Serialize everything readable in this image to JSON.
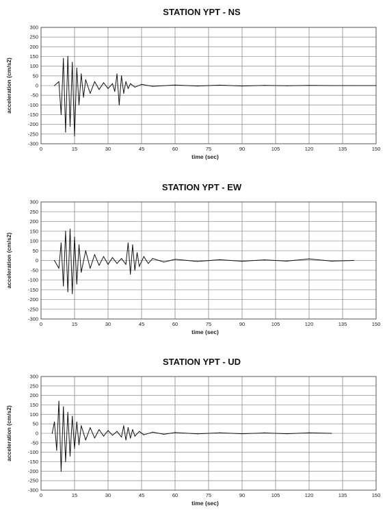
{
  "chart_data": [
    {
      "type": "line",
      "title": "STATION YPT - NS",
      "xlabel": "time (sec)",
      "ylabel": "acceleration (cm/s2)",
      "xlim": [
        0,
        150
      ],
      "ylim": [
        -300,
        300
      ],
      "xticks": [
        "0",
        "15",
        "30",
        "45",
        "60",
        "75",
        "90",
        "105",
        "120",
        "135",
        "150"
      ],
      "yticks": [
        "300",
        "250",
        "200",
        "150",
        "100",
        "50",
        "0",
        "-50",
        "-100",
        "-150",
        "-200",
        "-250",
        "-300"
      ],
      "grid": true,
      "series": [
        {
          "x": [
            6,
            8,
            9,
            10,
            11,
            12,
            13,
            14,
            15,
            16,
            17,
            18,
            19,
            20,
            22,
            24,
            26,
            28,
            30,
            32,
            33,
            34,
            35,
            36,
            37,
            38,
            39,
            40,
            42,
            45,
            50,
            60,
            70,
            80,
            90,
            100,
            110,
            120,
            130,
            140,
            150
          ],
          "y": [
            0,
            20,
            -150,
            140,
            -240,
            150,
            -210,
            120,
            -260,
            90,
            -100,
            60,
            -60,
            30,
            -40,
            20,
            -20,
            15,
            -15,
            10,
            -30,
            60,
            -100,
            50,
            -40,
            20,
            -15,
            10,
            -8,
            6,
            -4,
            3,
            -2,
            2,
            -2,
            1,
            -1,
            1,
            0,
            0,
            0
          ]
        }
      ]
    },
    {
      "type": "line",
      "title": "STATION YPT - EW",
      "xlabel": "time (sec)",
      "ylabel": "acceleration (cm/s2)",
      "xlim": [
        0,
        150
      ],
      "ylim": [
        -300,
        300
      ],
      "xticks": [
        "0",
        "15",
        "30",
        "45",
        "60",
        "75",
        "90",
        "105",
        "120",
        "135",
        "150"
      ],
      "yticks": [
        "300",
        "250",
        "200",
        "150",
        "100",
        "50",
        "0",
        "-50",
        "-100",
        "-150",
        "-200",
        "-250",
        "-300"
      ],
      "grid": true,
      "series": [
        {
          "x": [
            6,
            8,
            9,
            10,
            11,
            12,
            13,
            14,
            15,
            16,
            17,
            18,
            20,
            22,
            24,
            26,
            28,
            30,
            32,
            34,
            36,
            38,
            39,
            40,
            41,
            42,
            43,
            44,
            46,
            48,
            50,
            55,
            60,
            70,
            80,
            90,
            100,
            110,
            120,
            130,
            140
          ],
          "y": [
            0,
            -40,
            90,
            -130,
            150,
            -160,
            160,
            -170,
            120,
            -120,
            80,
            -60,
            50,
            -40,
            30,
            -25,
            20,
            -20,
            15,
            -15,
            10,
            -20,
            90,
            -70,
            80,
            -50,
            40,
            -30,
            20,
            -15,
            10,
            -8,
            6,
            -5,
            4,
            -4,
            3,
            -3,
            8,
            -3,
            0
          ]
        }
      ]
    },
    {
      "type": "line",
      "title": "STATION YPT - UD",
      "xlabel": "time (sec)",
      "ylabel": "acceleration (cm/s2)",
      "xlim": [
        0,
        150
      ],
      "ylim": [
        -300,
        300
      ],
      "xticks": [
        "0",
        "15",
        "30",
        "45",
        "60",
        "75",
        "90",
        "105",
        "120",
        "135",
        "150"
      ],
      "yticks": [
        "300",
        "250",
        "200",
        "150",
        "100",
        "50",
        "0",
        "-50",
        "-100",
        "-150",
        "-200",
        "-250",
        "-300"
      ],
      "grid": true,
      "series": [
        {
          "x": [
            5,
            6,
            7,
            8,
            9,
            10,
            11,
            12,
            13,
            14,
            15,
            16,
            17,
            18,
            20,
            22,
            24,
            26,
            28,
            30,
            32,
            34,
            36,
            37,
            38,
            39,
            40,
            41,
            42,
            44,
            46,
            50,
            55,
            60,
            70,
            80,
            90,
            100,
            110,
            120,
            130
          ],
          "y": [
            0,
            60,
            -90,
            170,
            -200,
            140,
            -150,
            110,
            -120,
            90,
            -80,
            60,
            -60,
            40,
            -35,
            30,
            -25,
            20,
            -15,
            15,
            -10,
            10,
            -20,
            40,
            -35,
            30,
            -25,
            20,
            -15,
            10,
            -8,
            6,
            -5,
            4,
            -3,
            3,
            -2,
            2,
            -2,
            3,
            0
          ]
        }
      ]
    }
  ]
}
